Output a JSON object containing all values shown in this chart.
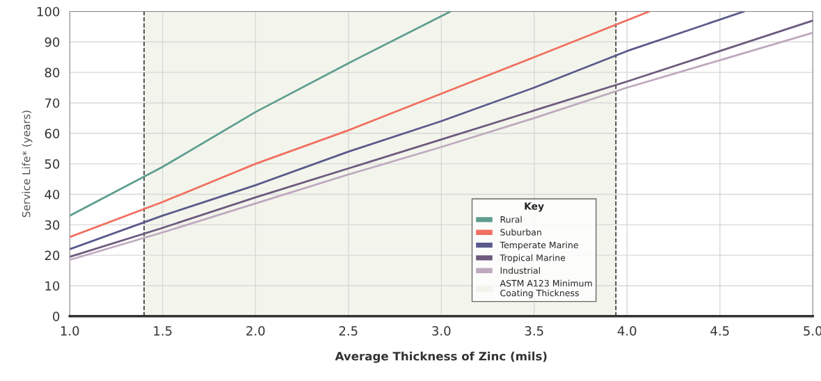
{
  "chart_data": {
    "type": "line",
    "xlabel": "Average Thickness of Zinc (mils)",
    "ylabel": "Service Life* (years)",
    "legend_title": "Key",
    "xlim": [
      1.0,
      5.0
    ],
    "xticks": [
      {
        "value": 1.0,
        "label": "1.0"
      },
      {
        "value": 1.5,
        "label": "1.5"
      },
      {
        "value": 2.0,
        "label": "2.0"
      },
      {
        "value": 2.5,
        "label": "2.5"
      },
      {
        "value": 3.0,
        "label": "3.0"
      },
      {
        "value": 3.5,
        "label": "3.5"
      },
      {
        "value": 4.0,
        "label": "4.0"
      },
      {
        "value": 4.5,
        "label": "4.5"
      },
      {
        "value": 5.0,
        "label": "5.0"
      }
    ],
    "ylim": [
      0,
      100
    ],
    "yticks": [
      0,
      10,
      20,
      30,
      40,
      50,
      60,
      70,
      80,
      90,
      100
    ],
    "grid": true,
    "legend": "bottom right",
    "marker": "none",
    "line_style": "solid",
    "series": [
      {
        "name": "Rural",
        "color": "#5f9e8f",
        "x": [
          1.0,
          1.5,
          2.0,
          2.5,
          3.05
        ],
        "values": [
          33,
          49,
          67,
          83,
          100
        ]
      },
      {
        "name": "Suburban",
        "color": "#f07060",
        "x": [
          1.0,
          1.5,
          2.0,
          2.5,
          3.0,
          3.5,
          4.12
        ],
        "values": [
          26,
          37.5,
          50,
          61,
          73,
          85,
          100
        ]
      },
      {
        "name": "Temperate Marine",
        "color": "#5a5a8c",
        "x": [
          1.0,
          1.5,
          2.0,
          2.5,
          3.0,
          3.5,
          4.0,
          4.63
        ],
        "values": [
          22,
          33,
          43,
          54,
          64,
          75,
          87,
          100
        ]
      },
      {
        "name": "Tropical Marine",
        "color": "#6e5a7e",
        "x": [
          1.0,
          1.5,
          2.0,
          2.5,
          3.0,
          3.5,
          4.0,
          4.5,
          5.0
        ],
        "values": [
          19.5,
          29,
          39,
          48.5,
          58,
          67.5,
          77,
          87,
          97
        ]
      },
      {
        "name": "Industrial",
        "color": "#bfa9bf",
        "x": [
          1.0,
          1.5,
          2.0,
          2.5,
          3.0,
          3.5,
          4.0,
          4.5,
          5.0
        ],
        "values": [
          18.5,
          27.5,
          37,
          46.5,
          55.5,
          65,
          75,
          84,
          93
        ]
      }
    ],
    "bands": [
      {
        "axis": "x",
        "from": 1.4,
        "to": 3.94,
        "label": "ASTM A123 Minimum\nCoating Thickness",
        "color": "#f3f5ec"
      }
    ],
    "ref_lines": [
      {
        "axis": "x",
        "value": 1.4,
        "color": "#333333",
        "line_style": "dashed"
      },
      {
        "axis": "x",
        "value": 3.94,
        "color": "#333333",
        "line_style": "dashed"
      }
    ]
  }
}
